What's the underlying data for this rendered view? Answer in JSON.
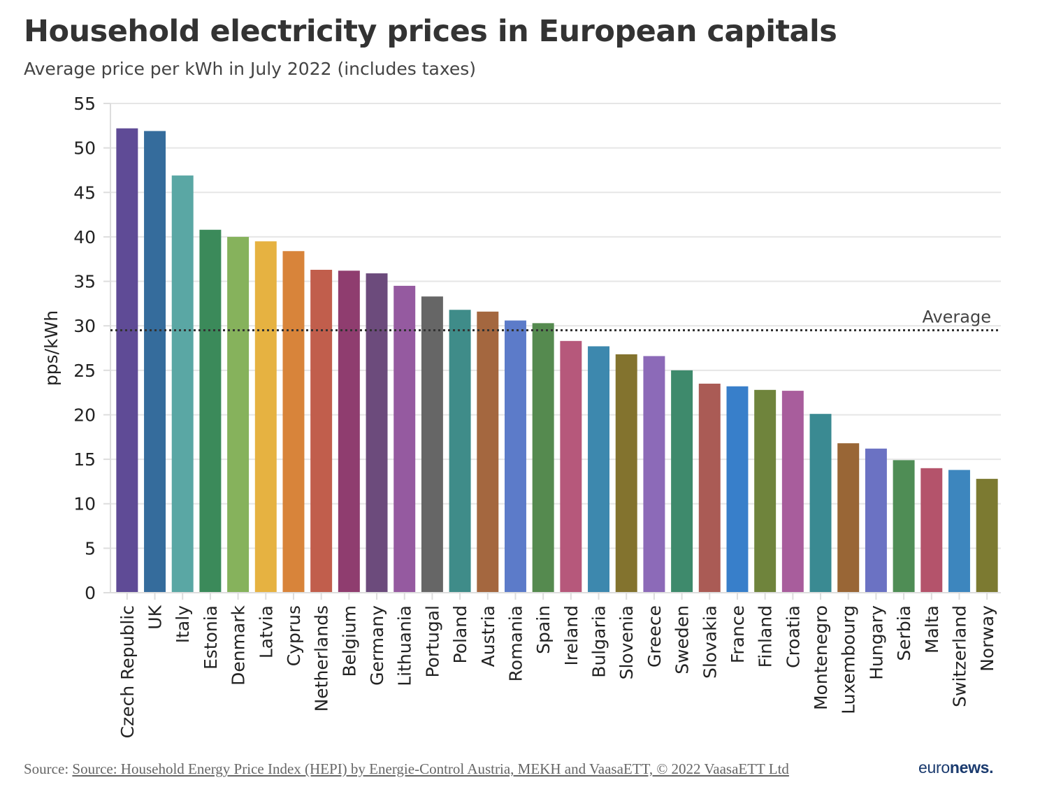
{
  "header": {
    "title": "Household electricity prices in European capitals",
    "subtitle": "Average price per kWh in July 2022 (includes taxes)"
  },
  "footer": {
    "source_prefix": "Source:",
    "source_link": "Source: Household Energy Price Index (HEPI) by Energie-Control Austria, MEKH and VaasaETT, © 2022 VaasaETT Ltd",
    "logo_light": "euro",
    "logo_bold": "news."
  },
  "chart_data": {
    "type": "bar",
    "title": "Household electricity prices in European capitals",
    "subtitle": "Average price per kWh in July 2022 (includes taxes)",
    "xlabel": "",
    "ylabel": "pps/kWh",
    "ylim": [
      0,
      55
    ],
    "yticks": [
      0,
      5,
      10,
      15,
      20,
      25,
      30,
      35,
      40,
      45,
      50,
      55
    ],
    "grid": true,
    "categories": [
      "Czech Republic",
      "UK",
      "Italy",
      "Estonia",
      "Denmark",
      "Latvia",
      "Cyprus",
      "Netherlands",
      "Belgium",
      "Germany",
      "Lithuania",
      "Portugal",
      "Poland",
      "Austria",
      "Romania",
      "Spain",
      "Ireland",
      "Bulgaria",
      "Slovenia",
      "Greece",
      "Sweden",
      "Slovakia",
      "France",
      "Finland",
      "Croatia",
      "Montenegro",
      "Luxembourg",
      "Hungary",
      "Serbia",
      "Malta",
      "Switzerland",
      "Norway"
    ],
    "values": [
      52.2,
      51.9,
      46.9,
      40.8,
      40.0,
      39.5,
      38.4,
      36.3,
      36.2,
      35.9,
      34.5,
      33.3,
      31.8,
      31.6,
      30.6,
      30.3,
      28.3,
      27.7,
      26.8,
      26.6,
      25.0,
      23.5,
      23.2,
      22.8,
      22.7,
      20.1,
      16.8,
      16.2,
      14.9,
      14.0,
      13.8,
      12.8
    ],
    "colors": [
      "#5f4b96",
      "#356c9c",
      "#5aa7a4",
      "#3b8a5a",
      "#86b25c",
      "#e6b241",
      "#d8843a",
      "#c15e4c",
      "#8f3d6f",
      "#6c4b7c",
      "#955aa0",
      "#666666",
      "#3f8c89",
      "#a4673f",
      "#5c7bc9",
      "#558a4f",
      "#b6587b",
      "#3d88ae",
      "#83732e",
      "#8c6ab8",
      "#3e8a6c",
      "#aa5b55",
      "#387fca",
      "#6f843c",
      "#a85d9c",
      "#3a8a92",
      "#996636",
      "#6b72c3",
      "#4f8d55",
      "#b4536b",
      "#3d86be",
      "#7c7a31"
    ],
    "reference_line": {
      "label": "Average",
      "value": 29.5
    }
  }
}
